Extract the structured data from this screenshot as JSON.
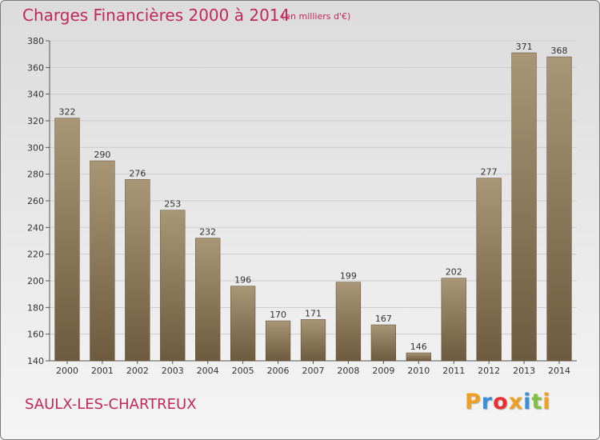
{
  "header": {
    "title": "Charges Financières 2000 à 2014",
    "subtitle": "(en milliers d'€)"
  },
  "footer": {
    "commune": "SAULX-LES-CHARTREUX",
    "brand_letters": [
      "P",
      "r",
      "o",
      "x",
      "i",
      "t",
      "i"
    ],
    "brand_colors": [
      "#f0a020",
      "#3a8fd8",
      "#e83030",
      "#f0a020",
      "#3a8fd8",
      "#80c040",
      "#f0a020"
    ]
  },
  "chart_data": {
    "type": "bar",
    "title": "Charges Financières 2000 à 2014",
    "subtitle": "(en milliers d'€)",
    "categories": [
      "2000",
      "2001",
      "2002",
      "2003",
      "2004",
      "2005",
      "2006",
      "2007",
      "2008",
      "2009",
      "2010",
      "2011",
      "2012",
      "2013",
      "2014"
    ],
    "values": [
      322,
      290,
      276,
      253,
      232,
      196,
      170,
      171,
      199,
      167,
      146,
      202,
      277,
      371,
      368
    ],
    "ylim": [
      140,
      380
    ],
    "yticks": [
      140,
      160,
      180,
      200,
      220,
      240,
      260,
      280,
      300,
      320,
      340,
      360,
      380
    ],
    "grid": true,
    "bar_color_top": "#a89676",
    "bar_color_bottom": "#6e5a3e"
  }
}
